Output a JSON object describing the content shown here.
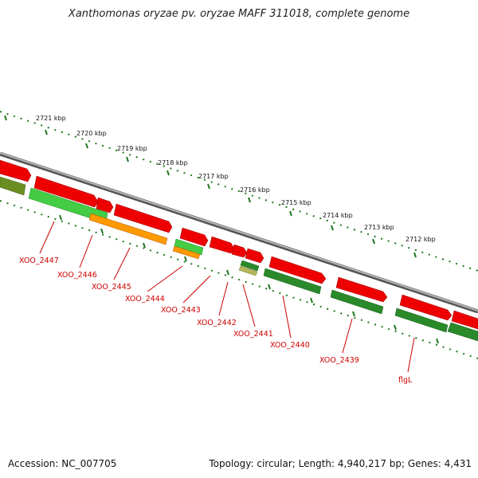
{
  "title": "Xanthomonas oryzae pv. oryzae MAFF 311018, complete genome",
  "accession": "Accession: NC_007705",
  "topology": "Topology: circular; Length: 4,940,217 bp; Genes: 4,431",
  "scale_labels": [
    "2721 kbp",
    "2720 kbp",
    "2719 kbp",
    "2718 kbp",
    "2717 kbp",
    "2716 kbp",
    "2715 kbp",
    "2714 kbp",
    "2713 kbp",
    "2712 kbp"
  ],
  "gene_labels": [
    "XOO_2447",
    "XOO_2446",
    "XOO_2445",
    "XOO_2444",
    "XOO_2443",
    "XOO_2442",
    "XOO_2441",
    "XOO_2440",
    "XOO_2439",
    "flgL"
  ],
  "colors": {
    "backbone": "#808080",
    "forward_gene": "#ee0000",
    "reverse_light": "#44cc44",
    "reverse_dark": "#2a8a2a",
    "reverse_olive": "#6b8e23",
    "reverse_orange": "#ff9900",
    "ticks": "#227722",
    "labels": "#cc0000"
  }
}
